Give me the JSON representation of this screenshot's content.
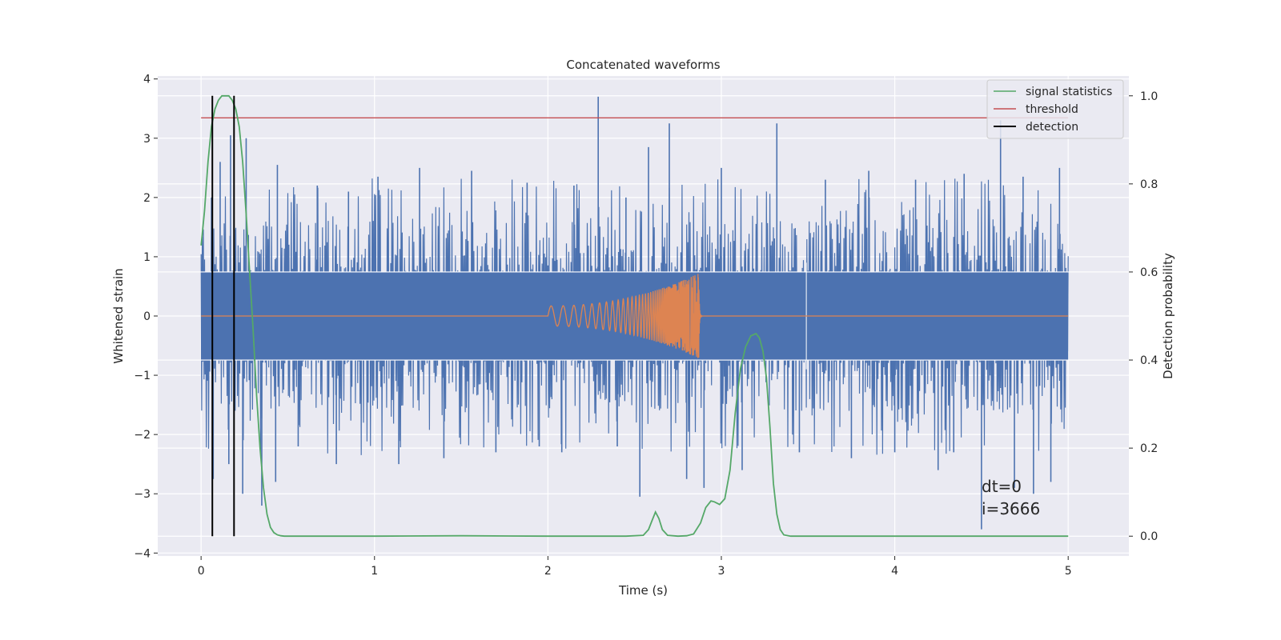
{
  "chart_data": {
    "type": "line",
    "title": "Concatenated waveforms",
    "xlabel": "Time (s)",
    "ylabel": "Whitened strain",
    "y2label": "Detection probability",
    "xlim": [
      -0.25,
      5.35
    ],
    "ylim": [
      -4.05,
      4.05
    ],
    "y2lim": [
      -0.045,
      1.045
    ],
    "xticks": [
      0,
      1,
      2,
      3,
      4,
      5
    ],
    "xtick_labels": [
      "0",
      "1",
      "2",
      "3",
      "4",
      "5"
    ],
    "yticks": [
      -4,
      -3,
      -2,
      -1,
      0,
      1,
      2,
      3,
      4
    ],
    "ytick_labels": [
      "−4",
      "−3",
      "−2",
      "−1",
      "0",
      "1",
      "2",
      "3",
      "4"
    ],
    "y2ticks": [
      0.0,
      0.2,
      0.4,
      0.6,
      0.8,
      1.0
    ],
    "y2tick_labels": [
      "0.0",
      "0.2",
      "0.4",
      "0.6",
      "0.8",
      "1.0"
    ],
    "grid": true,
    "legend_placement": "top-right",
    "colors": {
      "background": "#eaeaf2",
      "grid": "#ffffff",
      "strain": "#4c72b0",
      "injected_signal": "#dd8452",
      "signal_statistics": "#55a868",
      "threshold": "#c44e52",
      "detection": "#000000"
    },
    "series": [
      {
        "name": "strain",
        "axis": "left",
        "kind": "noise",
        "x_range": [
          0,
          5
        ],
        "core_band": [
          -0.75,
          0.75
        ],
        "spikes": [
          {
            "x": 0.06,
            "y": 2.0
          },
          {
            "x": 0.07,
            "y": -2.75
          },
          {
            "x": 0.11,
            "y": 2.6
          },
          {
            "x": 0.16,
            "y": -2.5
          },
          {
            "x": 0.17,
            "y": 3.05
          },
          {
            "x": 0.24,
            "y": -3.0
          },
          {
            "x": 0.26,
            "y": 3.0
          },
          {
            "x": 0.35,
            "y": -3.2
          },
          {
            "x": 0.43,
            "y": -2.8
          },
          {
            "x": 0.44,
            "y": 2.55
          },
          {
            "x": 0.56,
            "y": -2.2
          },
          {
            "x": 0.67,
            "y": 2.2
          },
          {
            "x": 0.78,
            "y": -2.5
          },
          {
            "x": 0.85,
            "y": 2.1
          },
          {
            "x": 1.02,
            "y": 2.35
          },
          {
            "x": 1.14,
            "y": -2.5
          },
          {
            "x": 1.26,
            "y": 2.5
          },
          {
            "x": 1.4,
            "y": -2.4
          },
          {
            "x": 1.56,
            "y": 2.45
          },
          {
            "x": 1.7,
            "y": -2.3
          },
          {
            "x": 1.88,
            "y": 2.25
          },
          {
            "x": 1.95,
            "y": -2.2
          },
          {
            "x": 2.08,
            "y": -2.3
          },
          {
            "x": 2.15,
            "y": 2.2
          },
          {
            "x": 2.29,
            "y": 3.7
          },
          {
            "x": 2.4,
            "y": -2.2
          },
          {
            "x": 2.45,
            "y": 2.0
          },
          {
            "x": 2.53,
            "y": -3.05
          },
          {
            "x": 2.58,
            "y": 2.85
          },
          {
            "x": 2.7,
            "y": 3.25
          },
          {
            "x": 2.8,
            "y": -2.75
          },
          {
            "x": 2.9,
            "y": -2.9
          },
          {
            "x": 3.0,
            "y": 2.5
          },
          {
            "x": 3.12,
            "y": -2.6
          },
          {
            "x": 3.32,
            "y": 3.25
          },
          {
            "x": 3.45,
            "y": -2.3
          },
          {
            "x": 3.6,
            "y": 2.3
          },
          {
            "x": 3.75,
            "y": -2.4
          },
          {
            "x": 3.85,
            "y": 2.45
          },
          {
            "x": 4.0,
            "y": -2.3
          },
          {
            "x": 4.12,
            "y": 2.3
          },
          {
            "x": 4.25,
            "y": -2.6
          },
          {
            "x": 4.34,
            "y": -2.3
          },
          {
            "x": 4.4,
            "y": 2.4
          },
          {
            "x": 4.5,
            "y": -3.6
          },
          {
            "x": 4.61,
            "y": 3.3
          },
          {
            "x": 4.69,
            "y": -2.9
          },
          {
            "x": 4.74,
            "y": 2.35
          },
          {
            "x": 4.8,
            "y": -3.0
          },
          {
            "x": 4.9,
            "y": -2.8
          },
          {
            "x": 4.95,
            "y": 2.5
          }
        ]
      },
      {
        "name": "injected signal",
        "axis": "left",
        "kind": "chirp",
        "x_range": [
          0,
          5
        ],
        "chirp_start": 2.0,
        "chirp_merge": 2.87,
        "amplitude_start": 0.17,
        "amplitude_peak": 0.72
      },
      {
        "name": "signal statistics",
        "axis": "right",
        "x": [
          0,
          0.02,
          0.04,
          0.06,
          0.08,
          0.1,
          0.12,
          0.14,
          0.16,
          0.18,
          0.2,
          0.22,
          0.24,
          0.26,
          0.28,
          0.3,
          0.32,
          0.34,
          0.36,
          0.38,
          0.4,
          0.42,
          0.44,
          0.46,
          0.48,
          0.5,
          1.0,
          1.5,
          2.0,
          2.45,
          2.55,
          2.58,
          2.6,
          2.62,
          2.64,
          2.66,
          2.69,
          2.75,
          2.8,
          2.84,
          2.88,
          2.91,
          2.94,
          2.96,
          2.99,
          3.02,
          3.05,
          3.08,
          3.11,
          3.14,
          3.17,
          3.2,
          3.22,
          3.24,
          3.26,
          3.28,
          3.3,
          3.32,
          3.34,
          3.36,
          3.4,
          3.5,
          4.0,
          4.5,
          5.0
        ],
        "values": [
          0.66,
          0.74,
          0.85,
          0.93,
          0.97,
          0.99,
          1.0,
          1.0,
          1.0,
          0.99,
          0.97,
          0.93,
          0.85,
          0.73,
          0.6,
          0.47,
          0.32,
          0.2,
          0.11,
          0.05,
          0.02,
          0.008,
          0.003,
          0.001,
          0.0,
          0.0,
          0.0,
          0.001,
          0.0,
          0.0,
          0.002,
          0.015,
          0.035,
          0.055,
          0.04,
          0.015,
          0.002,
          0.0,
          0.001,
          0.005,
          0.03,
          0.065,
          0.08,
          0.078,
          0.072,
          0.085,
          0.15,
          0.28,
          0.38,
          0.43,
          0.455,
          0.46,
          0.45,
          0.42,
          0.36,
          0.25,
          0.12,
          0.05,
          0.015,
          0.003,
          0.0,
          0.0,
          0.0,
          0.0,
          0.0
        ]
      },
      {
        "name": "threshold",
        "axis": "right",
        "x": [
          0,
          5
        ],
        "values": [
          0.95,
          0.95
        ]
      },
      {
        "name": "detection",
        "axis": "right",
        "vertical_lines_x": [
          0.065,
          0.19
        ],
        "y_span": [
          0.0,
          1.0
        ]
      }
    ],
    "legend": [
      "signal statistics",
      "threshold",
      "detection"
    ],
    "annotations": [
      "dt=0",
      "i=3666"
    ]
  }
}
